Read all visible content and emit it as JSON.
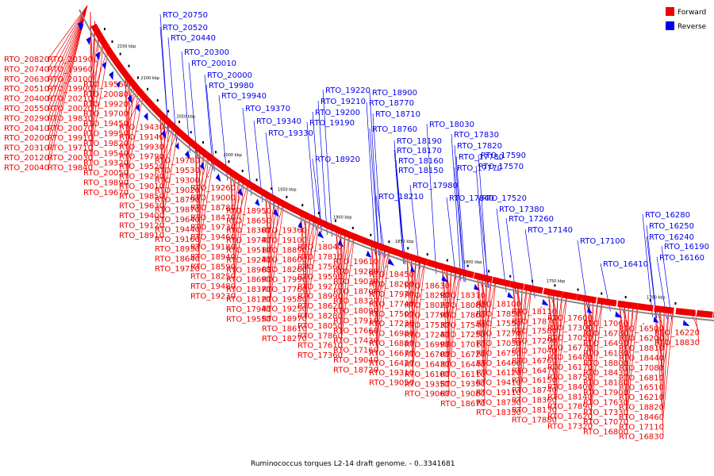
{
  "caption": "Ruminococcus torques L2-14 draft genome. - 0..3341681",
  "legend": [
    {
      "label": "Forward",
      "color": "#ee0000"
    },
    {
      "label": "Reverse",
      "color": "#0000ee"
    }
  ],
  "ticks": [
    "2150 kbp",
    "2100 kbp",
    "2050 kbp",
    "2000 kbp",
    "1950 kbp",
    "1900 kbp",
    "1850 kbp",
    "1800 kbp",
    "1750 kbp",
    "1700 kbp"
  ],
  "reverse_labels": [
    "RTO_20750",
    "RTO_20520",
    "RTO_20440",
    "RTO_20300",
    "RTO_20010",
    "RTO_20000",
    "RTO_19980",
    "RTO_19940",
    "RTO_19370",
    "RTO_19340",
    "RTO_19330",
    "RTO_19220",
    "RTO_19210",
    "RTO_19200",
    "RTO_19190",
    "RTO_18920",
    "RTO_18900",
    "RTO_18770",
    "RTO_18710",
    "RTO_18760",
    "RTO_18190",
    "RTO_18170",
    "RTO_18160",
    "RTO_18150",
    "RTO_18210",
    "RTO_18030",
    "RTO_17830",
    "RTO_17820",
    "RTO_17780",
    "RTO_17770",
    "RTO_17980",
    "RTO_17840",
    "RTO_17590",
    "RTO_17570",
    "RTO_17520",
    "RTO_17380",
    "RTO_17260",
    "RTO_17140",
    "RTO_17100",
    "RTO_16410",
    "RTO_16280",
    "RTO_16250",
    "RTO_16240",
    "RTO_16190",
    "RTO_16160"
  ],
  "forward_labels": [
    "RTO_20820",
    "RTO_20740",
    "RTO_20630",
    "RTO_20510",
    "RTO_20400",
    "RTO_20550",
    "RTO_20290",
    "RTO_20410",
    "RTO_20200",
    "RTO_20310",
    "RTO_20120",
    "RTO_20040",
    "RTO_20190",
    "RTO_19960",
    "RTO_20100",
    "RTO_19900",
    "RTO_20210",
    "RTO_20020",
    "RTO_19830",
    "RTO_20070",
    "RTO_19910",
    "RTO_19710",
    "RTO_20030",
    "RTO_19840",
    "RTO_19560",
    "RTO_20080",
    "RTO_19920",
    "RTO_19700",
    "RTO_19450",
    "RTO_19950",
    "RTO_19820",
    "RTO_19540",
    "RTO_19320",
    "RTO_20050",
    "RTO_19890",
    "RTO_19670",
    "RTO_19430",
    "RTO_19140",
    "RTO_19930",
    "RTO_19790",
    "RTO_19520",
    "RTO_19290",
    "RTO_19010",
    "RTO_19850",
    "RTO_19630",
    "RTO_19400",
    "RTO_19120",
    "RTO_18910",
    "RTO_19780",
    "RTO_19530",
    "RTO_19300",
    "RTO_19020",
    "RTO_18790",
    "RTO_19870",
    "RTO_19640",
    "RTO_19440",
    "RTO_19160",
    "RTO_18930",
    "RTO_18640",
    "RTO_19720",
    "RTO_19260",
    "RTO_19000",
    "RTO_18780",
    "RTO_18470",
    "RTO_19730",
    "RTO_19460",
    "RTO_19180",
    "RTO_18940",
    "RTO_18590",
    "RTO_18250",
    "RTO_19480",
    "RTO_19230",
    "RTO_18950",
    "RTO_18650",
    "RTO_18300",
    "RTO_19740",
    "RTO_19510",
    "RTO_19240",
    "RTO_18960",
    "RTO_18690",
    "RTO_18370",
    "RTO_18120",
    "RTO_17940",
    "RTO_19550",
    "RTO_19360",
    "RTO_19100",
    "RTO_18890",
    "RTO_18600",
    "RTO_18260",
    "RTO_17990",
    "RTO_17760",
    "RTO_19580",
    "RTO_19250",
    "RTO_18970",
    "RTO_18610",
    "RTO_18270",
    "RTO_18040",
    "RTO_17810",
    "RTO_17560",
    "RTO_19590",
    "RTO_19270",
    "RTO_18990",
    "RTO_18620",
    "RTO_18280",
    "RTO_18050",
    "RTO_17860",
    "RTO_17610",
    "RTO_17360",
    "RTO_19610",
    "RTO_19280",
    "RTO_19030",
    "RTO_18700",
    "RTO_18320",
    "RTO_18090",
    "RTO_17910",
    "RTO_17660",
    "RTO_17430",
    "RTO_17160",
    "RTO_19040",
    "RTO_18720",
    "RTO_18450",
    "RTO_18200",
    "RTO_17970",
    "RTO_17740",
    "RTO_17500",
    "RTO_17230",
    "RTO_16980",
    "RTO_16880",
    "RTO_16670",
    "RTO_16420",
    "RTO_19310",
    "RTO_19050",
    "RTO_18630",
    "RTO_18290",
    "RTO_18020",
    "RTO_17790",
    "RTO_17530",
    "RTO_17240",
    "RTO_16990",
    "RTO_16700",
    "RTO_16430",
    "RTO_16100",
    "RTO_19350",
    "RTO_19060",
    "RTO_18310",
    "RTO_18080",
    "RTO_17800",
    "RTO_17540",
    "RTO_17250",
    "RTO_17010",
    "RTO_16720",
    "RTO_16440",
    "RTO_16110",
    "RTO_19390",
    "RTO_19080",
    "RTO_18670",
    "RTO_18100",
    "RTO_17850",
    "RTO_17550",
    "RTO_17270",
    "RTO_17030",
    "RTO_16750",
    "RTO_16460",
    "RTO_16120",
    "RTO_19410",
    "RTO_19110",
    "RTO_18730",
    "RTO_18330",
    "RTO_18110",
    "RTO_17870",
    "RTO_17580",
    "RTO_17290",
    "RTO_17040",
    "RTO_16760",
    "RTO_16470",
    "RTO_16150",
    "RTO_18740",
    "RTO_18360",
    "RTO_18130",
    "RTO_17880",
    "RTO_17600",
    "RTO_17300",
    "RTO_17050",
    "RTO_16770",
    "RTO_16480",
    "RTO_16170",
    "RTO_18750",
    "RTO_18400",
    "RTO_18140",
    "RTO_17890",
    "RTO_17620",
    "RTO_17320",
    "RTO_17060",
    "RTO_16780",
    "RTO_16490",
    "RTO_16180",
    "RTO_18800",
    "RTO_18430",
    "RTO_18180",
    "RTO_17900",
    "RTO_17630",
    "RTO_17330",
    "RTO_17070",
    "RTO_16800",
    "RTO_16500",
    "RTO_16200",
    "RTO_18810",
    "RTO_18440",
    "RTO_17080",
    "RTO_16810",
    "RTO_16510",
    "RTO_16210",
    "RTO_18820",
    "RTO_18460",
    "RTO_17110",
    "RTO_16830",
    "RTO_16220",
    "RTO_18830"
  ]
}
